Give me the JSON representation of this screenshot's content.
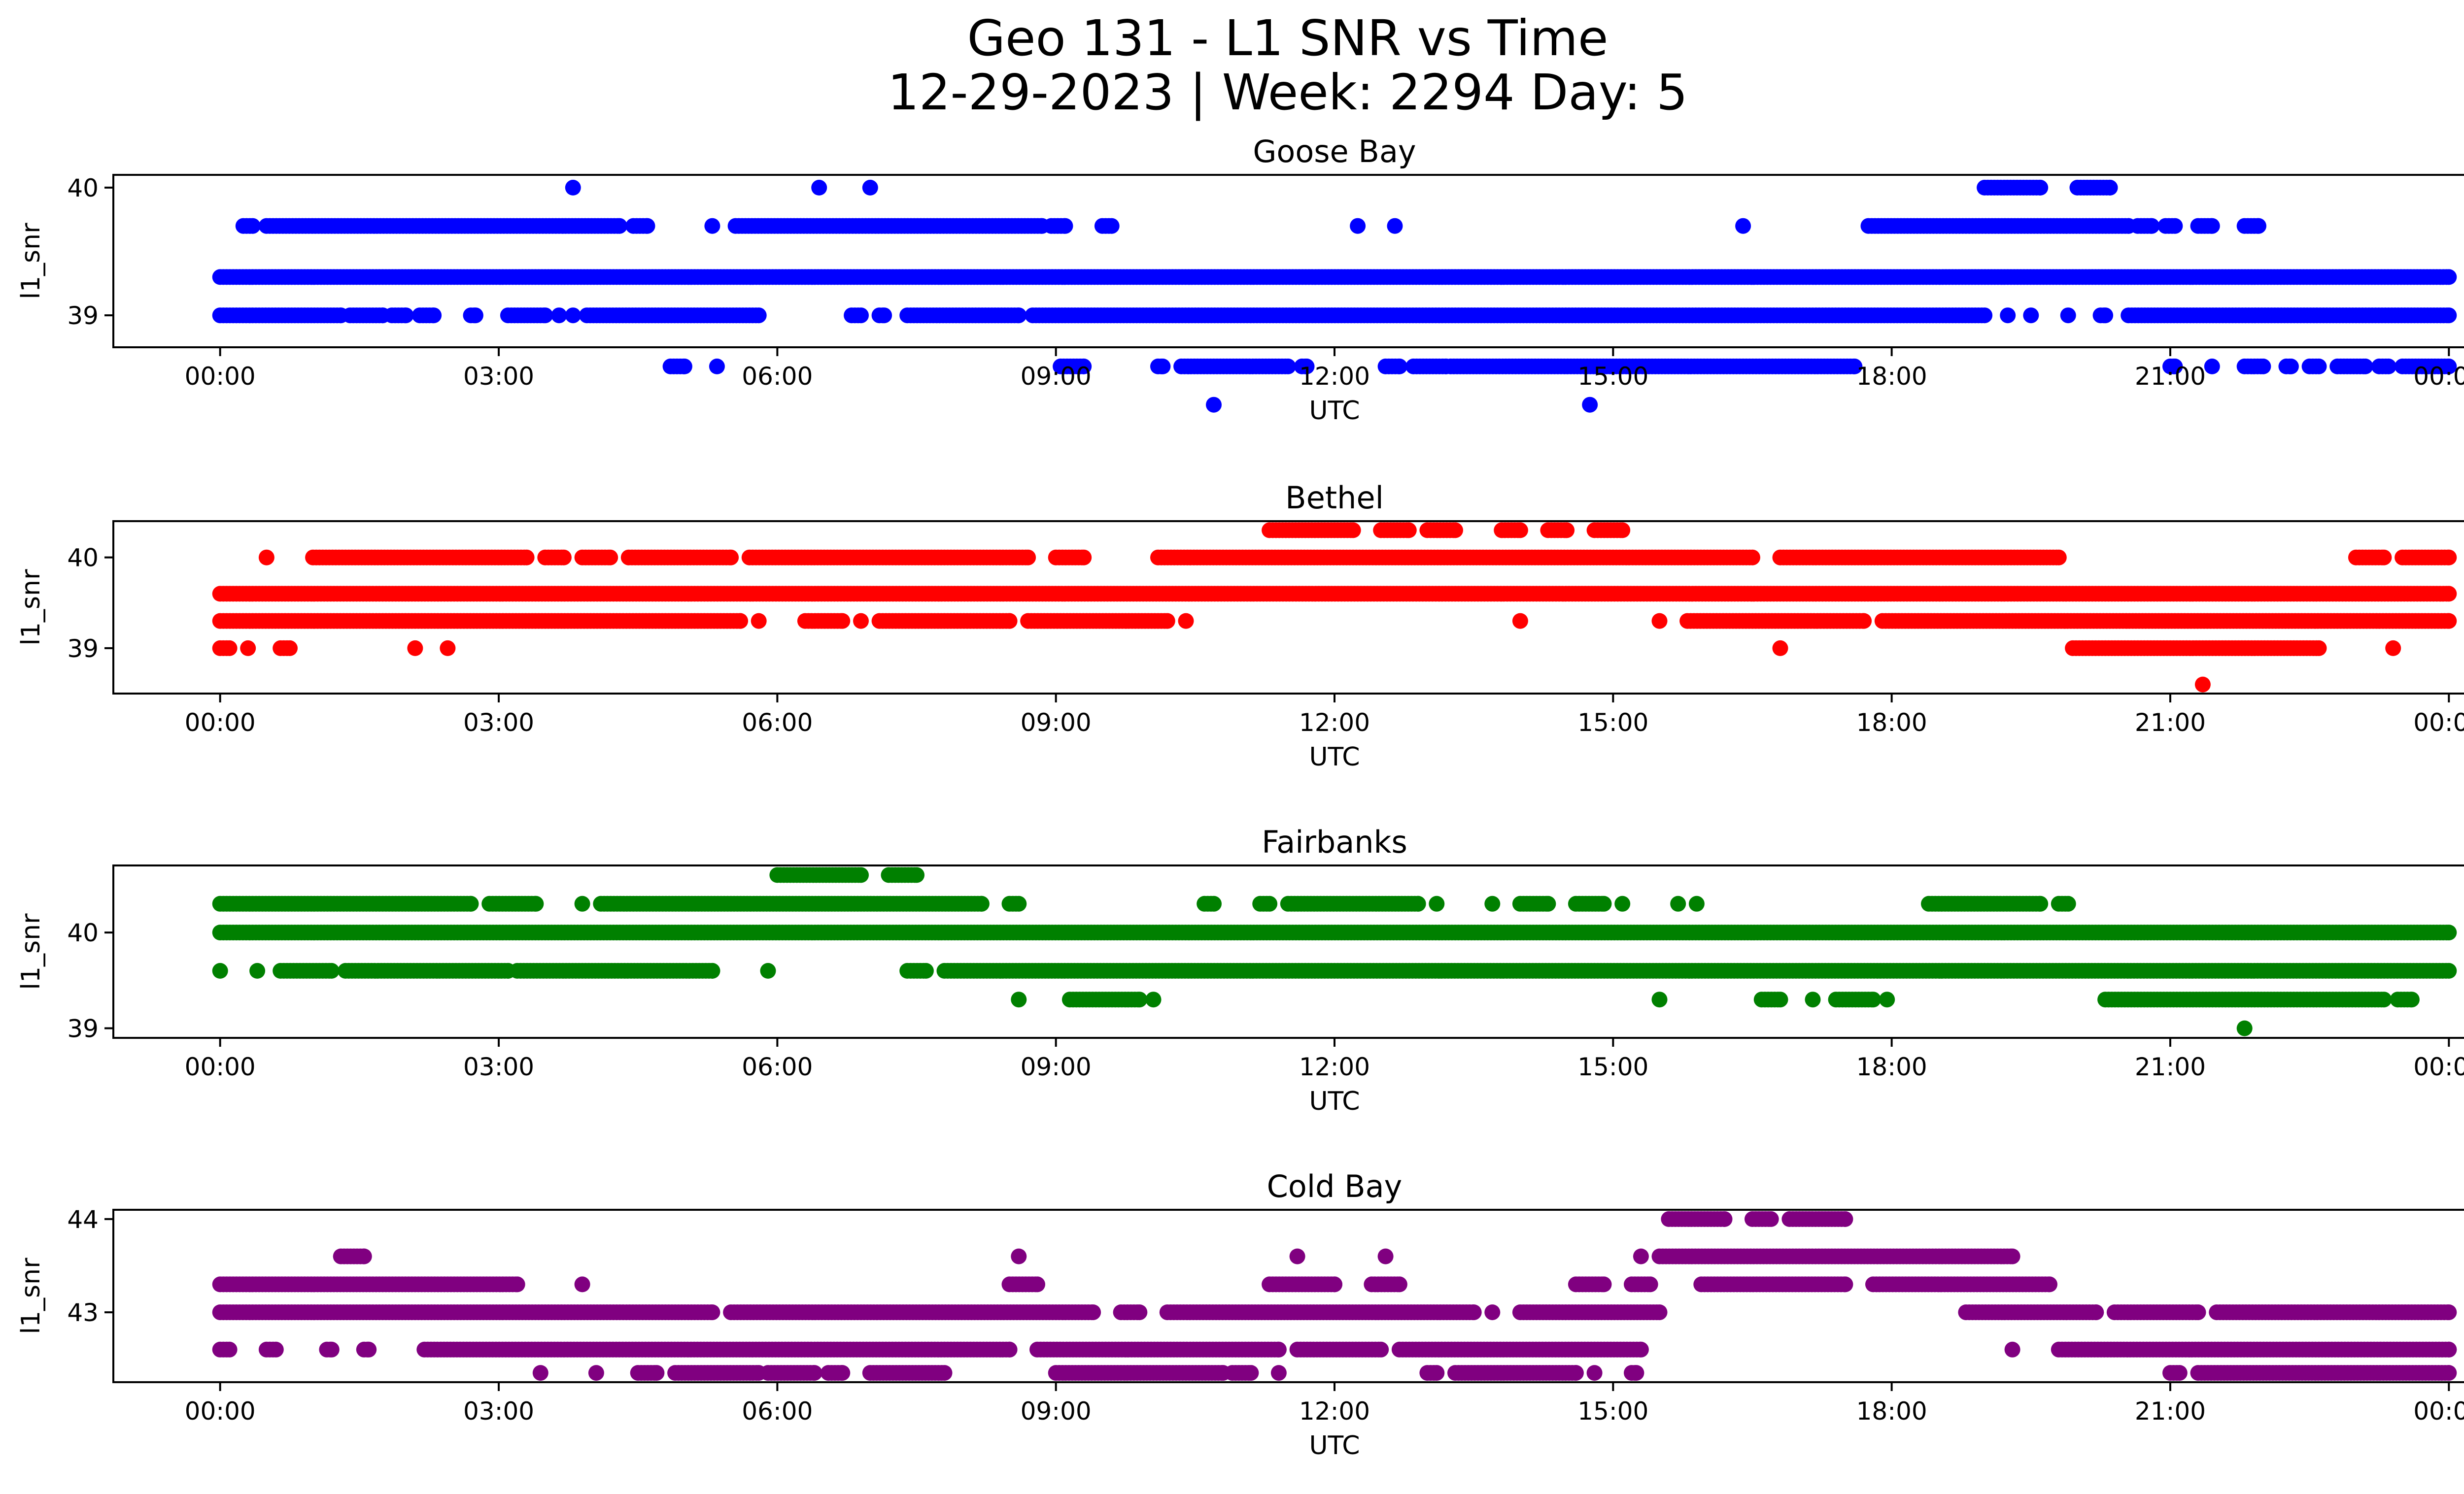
{
  "figure": {
    "title_line1": "Geo 131 - L1 SNR vs Time",
    "title_line2": "12-29-2023 | Week: 2294 Day: 5"
  },
  "chart_data": [
    {
      "type": "scatter",
      "title": "Goose Bay",
      "xlabel": "UTC",
      "ylabel": "l1_snr",
      "color": "#0000ff",
      "x_ticks": [
        "00:00",
        "03:00",
        "06:00",
        "09:00",
        "12:00",
        "15:00",
        "18:00",
        "21:00",
        "00:00"
      ],
      "xlim_hours": [
        -1.15,
        25.15
      ],
      "y_ticks": [
        39,
        40
      ],
      "ylim": [
        38.75,
        40.1
      ],
      "levels": [
        {
          "y": 40.0,
          "ranges": [
            [
              3.8,
              3.8
            ],
            [
              6.45,
              6.45
            ],
            [
              7.0,
              7.0
            ],
            [
              19.0,
              19.6
            ],
            [
              20.0,
              20.35
            ]
          ]
        },
        {
          "y": 39.7,
          "ranges": [
            [
              0.25,
              0.35
            ],
            [
              0.5,
              4.3
            ],
            [
              4.45,
              4.6
            ],
            [
              5.3,
              5.3
            ],
            [
              5.55,
              8.85
            ],
            [
              8.95,
              9.1
            ],
            [
              9.5,
              9.6
            ],
            [
              12.25,
              12.25
            ],
            [
              12.65,
              12.65
            ],
            [
              16.4,
              16.4
            ],
            [
              17.75,
              20.55
            ],
            [
              20.65,
              20.8
            ],
            [
              20.95,
              21.05
            ],
            [
              21.3,
              21.45
            ],
            [
              21.8,
              21.95
            ]
          ]
        },
        {
          "y": 39.3,
          "ranges": [
            [
              0.0,
              24.0
            ]
          ]
        },
        {
          "y": 39.0,
          "ranges": [
            [
              0.0,
              1.3
            ],
            [
              1.4,
              1.75
            ],
            [
              1.85,
              2.0
            ],
            [
              2.15,
              2.3
            ],
            [
              2.7,
              2.75
            ],
            [
              3.1,
              3.5
            ],
            [
              3.65,
              3.65
            ],
            [
              3.8,
              3.8
            ],
            [
              3.95,
              5.8
            ],
            [
              6.8,
              6.9
            ],
            [
              7.1,
              7.15
            ],
            [
              7.4,
              8.6
            ],
            [
              8.75,
              19.0
            ],
            [
              19.25,
              19.25
            ],
            [
              19.5,
              19.5
            ],
            [
              19.9,
              19.9
            ],
            [
              20.25,
              20.3
            ],
            [
              20.55,
              24.0
            ]
          ]
        },
        {
          "y": 38.6,
          "ranges": [
            [
              4.85,
              5.0
            ],
            [
              5.35,
              5.35
            ],
            [
              9.05,
              9.3
            ],
            [
              10.1,
              10.15
            ],
            [
              10.35,
              11.5
            ],
            [
              11.65,
              11.7
            ],
            [
              12.55,
              12.7
            ],
            [
              12.85,
              13.2
            ],
            [
              13.25,
              17.6
            ],
            [
              21.0,
              21.05
            ],
            [
              21.45,
              21.45
            ],
            [
              21.8,
              22.0
            ],
            [
              22.25,
              22.3
            ],
            [
              22.5,
              22.6
            ],
            [
              22.8,
              23.1
            ],
            [
              23.25,
              23.35
            ],
            [
              23.5,
              24.0
            ]
          ]
        },
        {
          "y": 38.3,
          "ranges": [
            [
              10.7,
              10.7
            ],
            [
              14.75,
              14.75
            ]
          ]
        }
      ]
    },
    {
      "type": "scatter",
      "title": "Bethel",
      "xlabel": "UTC",
      "ylabel": "l1_snr",
      "color": "#ff0000",
      "x_ticks": [
        "00:00",
        "03:00",
        "06:00",
        "09:00",
        "12:00",
        "15:00",
        "18:00",
        "21:00",
        "00:00"
      ],
      "xlim_hours": [
        -1.15,
        25.15
      ],
      "y_ticks": [
        39,
        40
      ],
      "ylim": [
        38.5,
        40.4
      ],
      "levels": [
        {
          "y": 40.3,
          "ranges": [
            [
              11.3,
              12.2
            ],
            [
              12.5,
              12.8
            ],
            [
              13.0,
              13.3
            ],
            [
              13.8,
              14.0
            ],
            [
              14.3,
              14.5
            ],
            [
              14.8,
              15.1
            ]
          ]
        },
        {
          "y": 40.0,
          "ranges": [
            [
              0.5,
              0.5
            ],
            [
              1.0,
              3.3
            ],
            [
              3.5,
              3.7
            ],
            [
              3.9,
              4.2
            ],
            [
              4.4,
              5.5
            ],
            [
              5.7,
              8.7
            ],
            [
              9.0,
              9.3
            ],
            [
              10.1,
              16.5
            ],
            [
              16.8,
              19.8
            ],
            [
              23.0,
              23.3
            ],
            [
              23.5,
              24.0
            ]
          ]
        },
        {
          "y": 39.6,
          "ranges": [
            [
              0.0,
              24.0
            ]
          ]
        },
        {
          "y": 39.3,
          "ranges": [
            [
              0.0,
              5.6
            ],
            [
              5.8,
              5.8
            ],
            [
              6.3,
              6.7
            ],
            [
              6.9,
              6.9
            ],
            [
              7.1,
              8.5
            ],
            [
              8.7,
              10.2
            ],
            [
              10.4,
              10.4
            ],
            [
              14.0,
              14.0
            ],
            [
              15.5,
              15.5
            ],
            [
              15.8,
              17.7
            ],
            [
              17.9,
              24.0
            ]
          ]
        },
        {
          "y": 39.0,
          "ranges": [
            [
              0.0,
              0.1
            ],
            [
              0.3,
              0.3
            ],
            [
              0.65,
              0.75
            ],
            [
              2.1,
              2.1
            ],
            [
              2.45,
              2.45
            ],
            [
              16.8,
              16.8
            ],
            [
              19.95,
              22.6
            ],
            [
              23.4,
              23.4
            ]
          ]
        },
        {
          "y": 38.6,
          "ranges": [
            [
              21.35,
              21.35
            ]
          ]
        }
      ]
    },
    {
      "type": "scatter",
      "title": "Fairbanks",
      "xlabel": "UTC",
      "ylabel": "l1_snr",
      "color": "#008000",
      "x_ticks": [
        "00:00",
        "03:00",
        "06:00",
        "09:00",
        "12:00",
        "15:00",
        "18:00",
        "21:00",
        "00:00"
      ],
      "xlim_hours": [
        -1.15,
        25.15
      ],
      "y_ticks": [
        39,
        40
      ],
      "ylim": [
        38.9,
        40.7
      ],
      "levels": [
        {
          "y": 40.6,
          "ranges": [
            [
              6.0,
              6.9
            ],
            [
              7.2,
              7.5
            ]
          ]
        },
        {
          "y": 40.3,
          "ranges": [
            [
              0.0,
              2.7
            ],
            [
              2.9,
              3.4
            ],
            [
              3.9,
              3.9
            ],
            [
              4.1,
              8.2
            ],
            [
              8.5,
              8.6
            ],
            [
              10.6,
              10.7
            ],
            [
              11.2,
              11.3
            ],
            [
              11.5,
              12.9
            ],
            [
              13.1,
              13.1
            ],
            [
              13.7,
              13.7
            ],
            [
              14.0,
              14.3
            ],
            [
              14.6,
              14.9
            ],
            [
              15.1,
              15.1
            ],
            [
              15.7,
              15.7
            ],
            [
              15.9,
              15.9
            ],
            [
              18.4,
              19.6
            ],
            [
              19.8,
              19.9
            ]
          ]
        },
        {
          "y": 40.0,
          "ranges": [
            [
              0.0,
              24.0
            ]
          ]
        },
        {
          "y": 39.6,
          "ranges": [
            [
              0.0,
              0.0
            ],
            [
              0.4,
              0.4
            ],
            [
              0.65,
              1.2
            ],
            [
              1.35,
              3.1
            ],
            [
              3.2,
              5.3
            ],
            [
              5.9,
              5.9
            ],
            [
              7.4,
              7.6
            ],
            [
              7.8,
              24.0
            ]
          ]
        },
        {
          "y": 39.3,
          "ranges": [
            [
              8.6,
              8.6
            ],
            [
              9.15,
              9.9
            ],
            [
              10.05,
              10.05
            ],
            [
              15.5,
              15.5
            ],
            [
              16.6,
              16.8
            ],
            [
              17.15,
              17.15
            ],
            [
              17.4,
              17.8
            ],
            [
              17.95,
              17.95
            ],
            [
              20.3,
              23.3
            ],
            [
              23.45,
              23.6
            ]
          ]
        },
        {
          "y": 39.0,
          "ranges": [
            [
              21.8,
              21.8
            ]
          ]
        }
      ]
    },
    {
      "type": "scatter",
      "title": "Cold Bay",
      "xlabel": "UTC",
      "ylabel": "l1_snr",
      "color": "#800080",
      "x_ticks": [
        "00:00",
        "03:00",
        "06:00",
        "09:00",
        "12:00",
        "15:00",
        "18:00",
        "21:00",
        "00:00"
      ],
      "xlim_hours": [
        -1.15,
        25.15
      ],
      "y_ticks": [
        43,
        44
      ],
      "ylim": [
        42.25,
        44.1
      ],
      "levels": [
        {
          "y": 44.0,
          "ranges": [
            [
              15.6,
              16.2
            ],
            [
              16.5,
              16.7
            ],
            [
              16.9,
              17.5
            ]
          ]
        },
        {
          "y": 43.6,
          "ranges": [
            [
              1.3,
              1.55
            ],
            [
              8.6,
              8.6
            ],
            [
              11.6,
              11.6
            ],
            [
              12.55,
              12.55
            ],
            [
              15.3,
              15.3
            ],
            [
              15.5,
              19.3
            ]
          ]
        },
        {
          "y": 43.3,
          "ranges": [
            [
              0.0,
              3.2
            ],
            [
              3.9,
              3.9
            ],
            [
              8.5,
              8.8
            ],
            [
              11.3,
              12.0
            ],
            [
              12.4,
              12.7
            ],
            [
              14.6,
              14.9
            ],
            [
              15.2,
              15.4
            ],
            [
              15.95,
              17.5
            ],
            [
              17.8,
              19.7
            ]
          ]
        },
        {
          "y": 43.0,
          "ranges": [
            [
              0.0,
              5.3
            ],
            [
              5.5,
              9.4
            ],
            [
              9.7,
              9.9
            ],
            [
              10.2,
              13.5
            ],
            [
              13.7,
              13.7
            ],
            [
              14.0,
              15.5
            ],
            [
              18.8,
              20.2
            ],
            [
              20.4,
              21.3
            ],
            [
              21.5,
              24.0
            ]
          ]
        },
        {
          "y": 42.6,
          "ranges": [
            [
              0.0,
              0.1
            ],
            [
              0.5,
              0.6
            ],
            [
              1.15,
              1.2
            ],
            [
              1.55,
              1.6
            ],
            [
              2.2,
              8.5
            ],
            [
              8.8,
              11.4
            ],
            [
              11.6,
              12.5
            ],
            [
              12.7,
              15.3
            ],
            [
              19.3,
              19.3
            ],
            [
              19.8,
              24.0
            ]
          ]
        },
        {
          "y": 42.35,
          "ranges": [
            [
              3.45,
              3.45
            ],
            [
              4.05,
              4.05
            ],
            [
              4.5,
              4.7
            ],
            [
              4.9,
              5.8
            ],
            [
              5.9,
              6.4
            ],
            [
              6.55,
              6.7
            ],
            [
              7.0,
              7.8
            ],
            [
              9.0,
              10.8
            ],
            [
              10.9,
              11.1
            ],
            [
              11.4,
              11.4
            ],
            [
              13.0,
              13.1
            ],
            [
              13.3,
              14.6
            ],
            [
              14.8,
              14.8
            ],
            [
              15.2,
              15.25
            ],
            [
              21.0,
              21.1
            ],
            [
              21.3,
              24.0
            ]
          ]
        }
      ]
    }
  ]
}
